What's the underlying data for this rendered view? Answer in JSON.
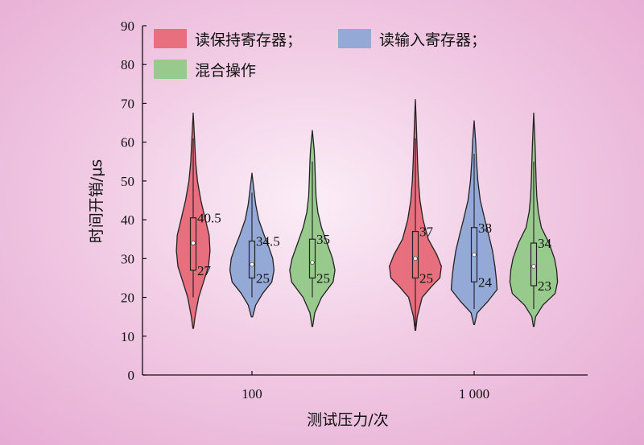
{
  "chart_data": {
    "type": "violin",
    "title": "",
    "xlabel": "测试压力/次",
    "ylabel": "时间开销/μs",
    "ylim": [
      0,
      90
    ],
    "yticks": [
      0,
      10,
      20,
      30,
      40,
      50,
      60,
      70,
      80,
      90
    ],
    "categories": [
      "100",
      "1 000"
    ],
    "legend_position": "top-left",
    "series": [
      {
        "name": "读保持寄存器；",
        "color": "#e8707e",
        "groups": [
          {
            "min": 12,
            "max": 67.5,
            "whisker_low": 20,
            "whisker_high": 61,
            "q1": 27,
            "q3": 40.5,
            "median": 34,
            "q1_label": "27",
            "q3_label": "40.5",
            "profile": [
              [
                12,
                0.01
              ],
              [
                15,
                0.06
              ],
              [
                20,
                0.18
              ],
              [
                25,
                0.38
              ],
              [
                28,
                0.5
              ],
              [
                32,
                0.55
              ],
              [
                36,
                0.52
              ],
              [
                40,
                0.4
              ],
              [
                45,
                0.25
              ],
              [
                50,
                0.14
              ],
              [
                55,
                0.08
              ],
              [
                60,
                0.05
              ],
              [
                64,
                0.025
              ],
              [
                67.5,
                0
              ]
            ]
          },
          {
            "min": 11.5,
            "max": 71,
            "whisker_low": 12.5,
            "whisker_high": 61,
            "q1": 25,
            "q3": 37,
            "median": 30,
            "q1_label": "25",
            "q3_label": "37",
            "profile": [
              [
                11.5,
                0.01
              ],
              [
                15,
                0.06
              ],
              [
                20,
                0.22
              ],
              [
                23,
                0.55
              ],
              [
                25,
                0.8
              ],
              [
                28,
                0.85
              ],
              [
                31,
                0.7
              ],
              [
                35,
                0.42
              ],
              [
                40,
                0.25
              ],
              [
                45,
                0.15
              ],
              [
                50,
                0.1
              ],
              [
                55,
                0.07
              ],
              [
                60,
                0.05
              ],
              [
                65,
                0.03
              ],
              [
                71,
                0
              ]
            ]
          }
        ]
      },
      {
        "name": "读输入寄存器；",
        "color": "#94a9d6",
        "groups": [
          {
            "min": 15,
            "max": 52,
            "whisker_low": 20,
            "whisker_high": 47,
            "q1": 25,
            "q3": 34.5,
            "median": 28.5,
            "q1_label": "25",
            "q3_label": "34.5",
            "profile": [
              [
                15,
                0.02
              ],
              [
                18,
                0.12
              ],
              [
                21,
                0.35
              ],
              [
                24,
                0.65
              ],
              [
                27,
                0.72
              ],
              [
                30,
                0.68
              ],
              [
                33,
                0.55
              ],
              [
                36,
                0.4
              ],
              [
                40,
                0.22
              ],
              [
                44,
                0.12
              ],
              [
                48,
                0.06
              ],
              [
                52,
                0
              ]
            ]
          },
          {
            "min": 13,
            "max": 65.5,
            "whisker_low": 17,
            "whisker_high": 57,
            "q1": 24,
            "q3": 38,
            "median": 31,
            "q1_label": "24",
            "q3_label": "38",
            "profile": [
              [
                13,
                0.01
              ],
              [
                16,
                0.1
              ],
              [
                19,
                0.45
              ],
              [
                22,
                0.75
              ],
              [
                25,
                0.72
              ],
              [
                28,
                0.68
              ],
              [
                32,
                0.6
              ],
              [
                36,
                0.48
              ],
              [
                40,
                0.35
              ],
              [
                45,
                0.2
              ],
              [
                50,
                0.12
              ],
              [
                55,
                0.08
              ],
              [
                60,
                0.05
              ],
              [
                65.5,
                0
              ]
            ]
          }
        ]
      },
      {
        "name": "混合操作",
        "color": "#98c98d",
        "groups": [
          {
            "min": 12.5,
            "max": 63,
            "whisker_low": 20,
            "whisker_high": 55,
            "q1": 25,
            "q3": 35,
            "median": 29,
            "q1_label": "25",
            "q3_label": "35",
            "profile": [
              [
                12.5,
                0.01
              ],
              [
                16,
                0.08
              ],
              [
                20,
                0.3
              ],
              [
                24,
                0.68
              ],
              [
                27,
                0.74
              ],
              [
                30,
                0.66
              ],
              [
                34,
                0.48
              ],
              [
                38,
                0.3
              ],
              [
                42,
                0.18
              ],
              [
                46,
                0.12
              ],
              [
                50,
                0.1
              ],
              [
                55,
                0.08
              ],
              [
                58,
                0.06
              ],
              [
                63,
                0
              ]
            ]
          },
          {
            "min": 12.5,
            "max": 67.5,
            "whisker_low": 17,
            "whisker_high": 55,
            "q1": 23,
            "q3": 34,
            "median": 28,
            "q1_label": "23",
            "q3_label": "34",
            "profile": [
              [
                12.5,
                0.01
              ],
              [
                15,
                0.06
              ],
              [
                18,
                0.3
              ],
              [
                21,
                0.7
              ],
              [
                24,
                0.78
              ],
              [
                27,
                0.75
              ],
              [
                30,
                0.68
              ],
              [
                34,
                0.5
              ],
              [
                38,
                0.25
              ],
              [
                42,
                0.15
              ],
              [
                46,
                0.1
              ],
              [
                50,
                0.08
              ],
              [
                55,
                0.06
              ],
              [
                60,
                0.04
              ],
              [
                67.5,
                0
              ]
            ]
          }
        ]
      }
    ]
  }
}
